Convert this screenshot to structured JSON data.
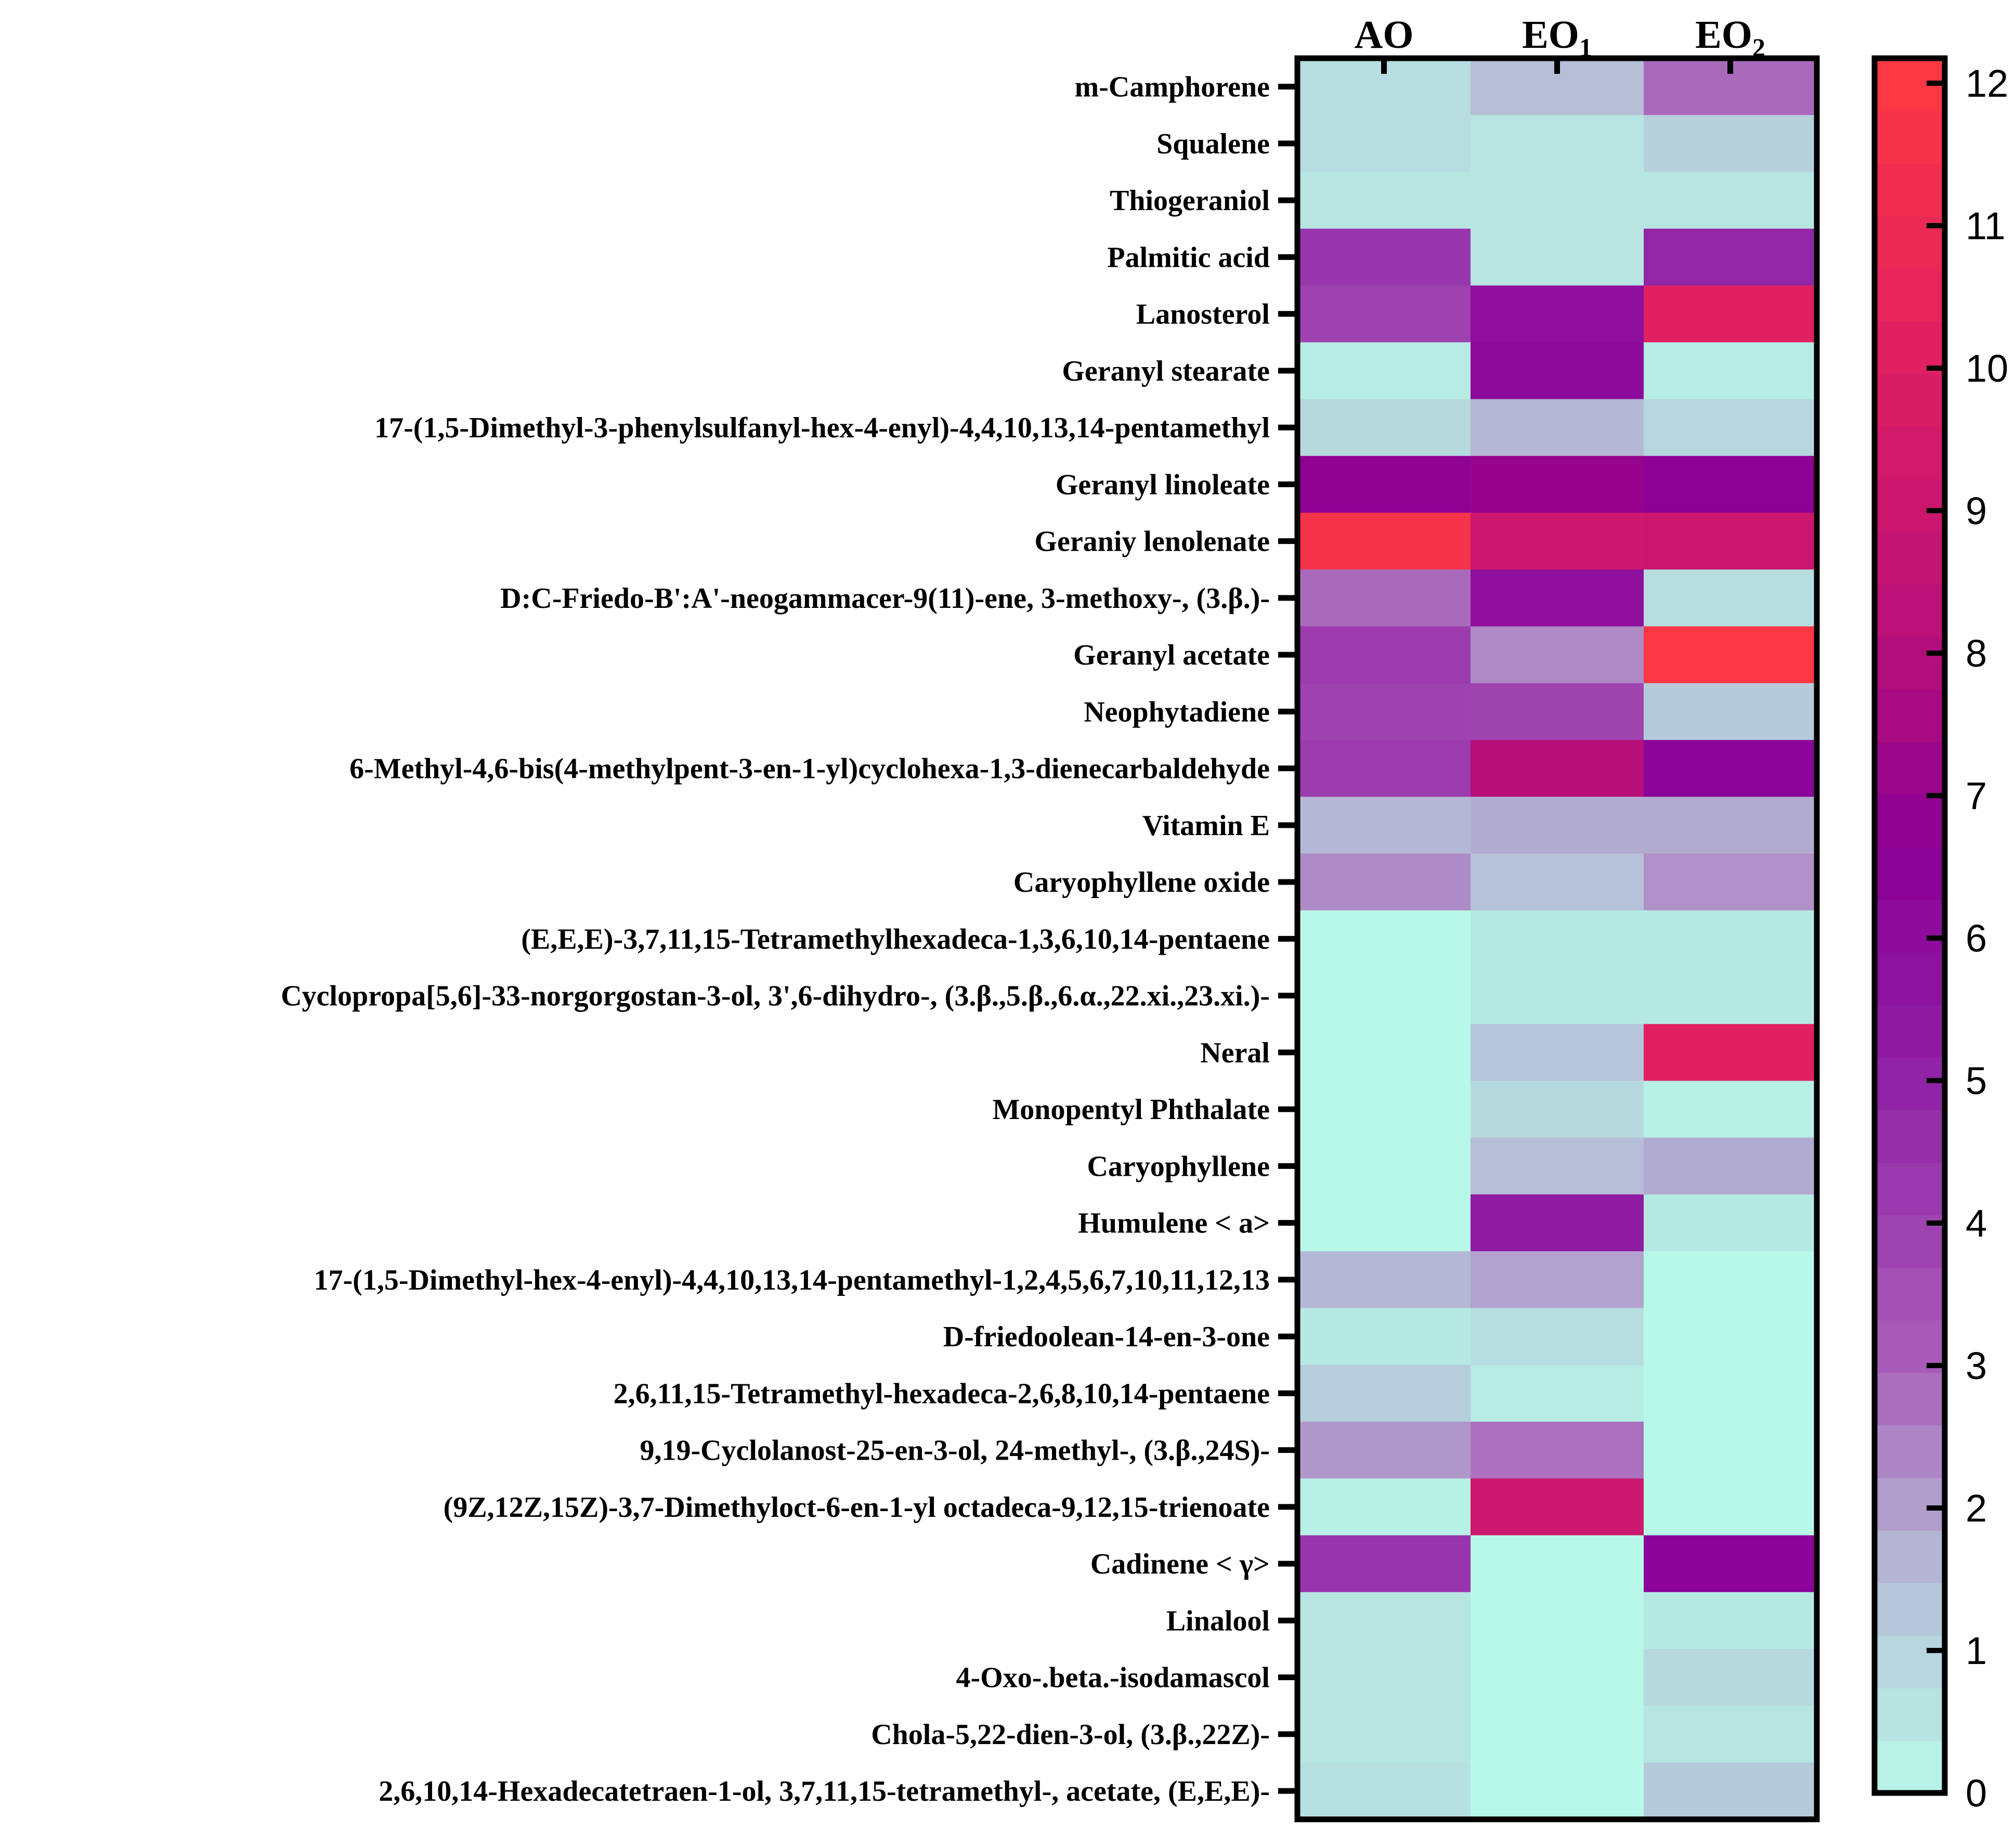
{
  "chart_data": {
    "type": "heatmap",
    "columns": [
      {
        "main": "AO",
        "sub": ""
      },
      {
        "main": "EO",
        "sub": "1"
      },
      {
        "main": "EO",
        "sub": "2"
      }
    ],
    "rows": [
      "m-Camphorene",
      "Squalene",
      "Thiogeraniol",
      "Palmitic acid",
      "Lanosterol",
      "Geranyl stearate",
      "17-(1,5-Dimethyl-3-phenylsulfanyl-hex-4-enyl)-4,4,10,13,14-pentamethyl",
      "Geranyl linoleate",
      "Geraniy lenolenate",
      "D:C-Friedo-B':A'-neogammacer-9(11)-ene, 3-methoxy-, (3.β.)-",
      "Geranyl acetate",
      "Neophytadiene",
      "6-Methyl-4,6-bis(4-methylpent-3-en-1-yl)cyclohexa-1,3-dienecarbaldehyde",
      "Vitamin E",
      "Caryophyllene oxide",
      "(E,E,E)-3,7,11,15-Tetramethylhexadeca-1,3,6,10,14-pentaene",
      "Cyclopropa[5,6]-33-norgorgostan-3-ol, 3',6-dihydro-, (3.β.,5.β.,6.α.,22.xi.,23.xi.)-",
      "Neral",
      "Monopentyl Phthalate",
      "Caryophyllene",
      "Humulene < a>",
      "17-(1,5-Dimethyl-hex-4-enyl)-4,4,10,13,14-pentamethyl-1,2,4,5,6,7,10,11,12,13",
      "D-friedoolean-14-en-3-one",
      "2,6,11,15-Tetramethyl-hexadeca-2,6,8,10,14-pentaene",
      "9,19-Cyclolanost-25-en-3-ol, 24-methyl-, (3.β.,24S)-",
      "(9Z,12Z,15Z)-3,7-Dimethyloct-6-en-1-yl octadeca-9,12,15-trienoate",
      "Cadinene < γ>",
      "Linalool",
      "4-Oxo-.beta.-isodamascol",
      "Chola-5,22-dien-3-ol, (3.β.,22Z)-",
      "2,6,10,14-Hexadecatetraen-1-ol, 3,7,11,15-tetramethyl-, acetate, (E,E,E)-"
    ],
    "values": [
      [
        0.7,
        1.5,
        2.8
      ],
      [
        0.7,
        0.5,
        1.0
      ],
      [
        0.5,
        0.5,
        0.5
      ],
      [
        4.3,
        0.5,
        4.8
      ],
      [
        3.9,
        5.8,
        10.0
      ],
      [
        0.3,
        6.0,
        0.3
      ],
      [
        0.8,
        1.6,
        0.9
      ],
      [
        6.7,
        6.9,
        6.6
      ],
      [
        11.4,
        9.0,
        8.9
      ],
      [
        2.8,
        5.8,
        0.7
      ],
      [
        4.1,
        2.3,
        11.8
      ],
      [
        3.9,
        3.8,
        1.2
      ],
      [
        4.1,
        8.0,
        6.2
      ],
      [
        1.6,
        1.8,
        1.8
      ],
      [
        2.3,
        1.4,
        2.2
      ],
      [
        0.0,
        0.4,
        0.4
      ],
      [
        0.0,
        0.4,
        0.4
      ],
      [
        0.0,
        1.3,
        10.0
      ],
      [
        0.0,
        0.8,
        0.2
      ],
      [
        0.0,
        1.5,
        1.8
      ],
      [
        0.0,
        5.2,
        0.4
      ],
      [
        1.6,
        1.9,
        0.0
      ],
      [
        0.4,
        0.7,
        0.0
      ],
      [
        1.1,
        0.3,
        0.0
      ],
      [
        2.1,
        2.7,
        0.0
      ],
      [
        0.2,
        9.0,
        0.0
      ],
      [
        4.3,
        0.0,
        6.3
      ],
      [
        0.5,
        0.0,
        0.4
      ],
      [
        0.5,
        0.0,
        0.8
      ],
      [
        0.5,
        0.0,
        0.5
      ],
      [
        0.6,
        0.0,
        1.2
      ]
    ],
    "colorbar": {
      "min": 0,
      "max": 12,
      "ticks": [
        "0",
        "1",
        "2",
        "3",
        "4",
        "5",
        "6",
        "7",
        "8",
        "9",
        "10",
        "11",
        "12"
      ],
      "stops": [
        {
          "v": 0,
          "color": "#b8f8e8"
        },
        {
          "v": 1.5,
          "color": "#b5bed6"
        },
        {
          "v": 3,
          "color": "#a85db8"
        },
        {
          "v": 5,
          "color": "#9020a5"
        },
        {
          "v": 6.5,
          "color": "#8a0095"
        },
        {
          "v": 8,
          "color": "#b81078"
        },
        {
          "v": 10,
          "color": "#e02060"
        },
        {
          "v": 12,
          "color": "#ff3a42"
        }
      ]
    }
  }
}
